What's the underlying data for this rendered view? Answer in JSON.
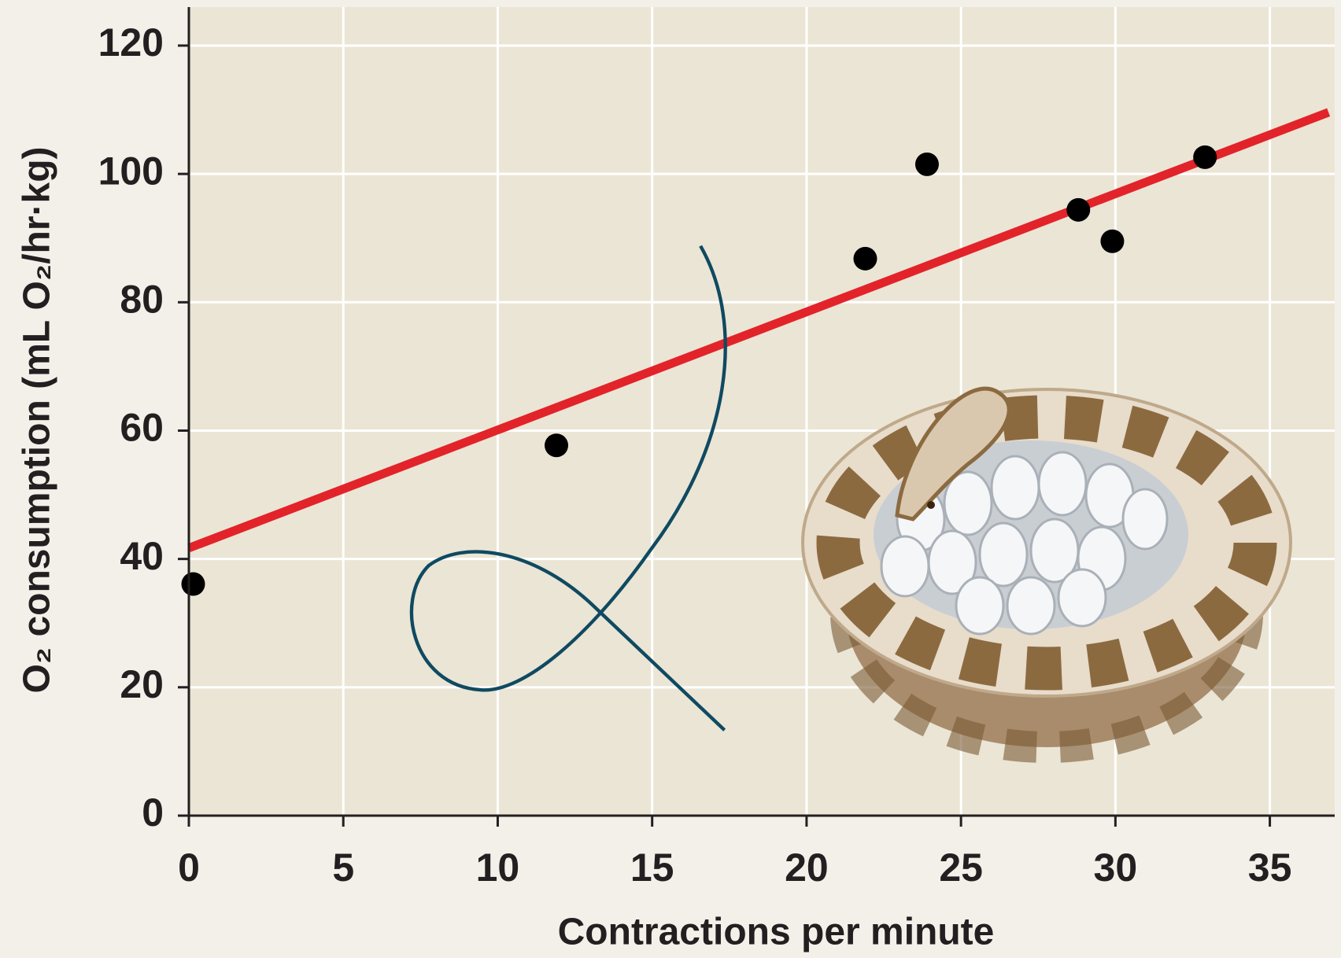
{
  "chart_data": {
    "type": "scatter",
    "x_label": "Contractions per minute",
    "y_label": "O₂ consumption (mL O₂/hr·kg)",
    "xlim": [
      0,
      37.1
    ],
    "ylim": [
      0,
      126
    ],
    "xticks": [
      0,
      5,
      10,
      15,
      20,
      25,
      30,
      35
    ],
    "yticks": [
      0,
      20,
      40,
      60,
      80,
      100,
      120
    ],
    "grid": true,
    "points": {
      "color": "#000000",
      "x": [
        0.14,
        11.9,
        21.9,
        23.9,
        28.8,
        29.9,
        32.9
      ],
      "values": [
        36.1,
        57.7,
        86.8,
        101.5,
        94.4,
        89.5,
        102.6
      ]
    },
    "trend_line": {
      "color": "#e2232a",
      "x": [
        0,
        36.9
      ],
      "values": [
        41.7,
        109.6
      ]
    }
  }
}
